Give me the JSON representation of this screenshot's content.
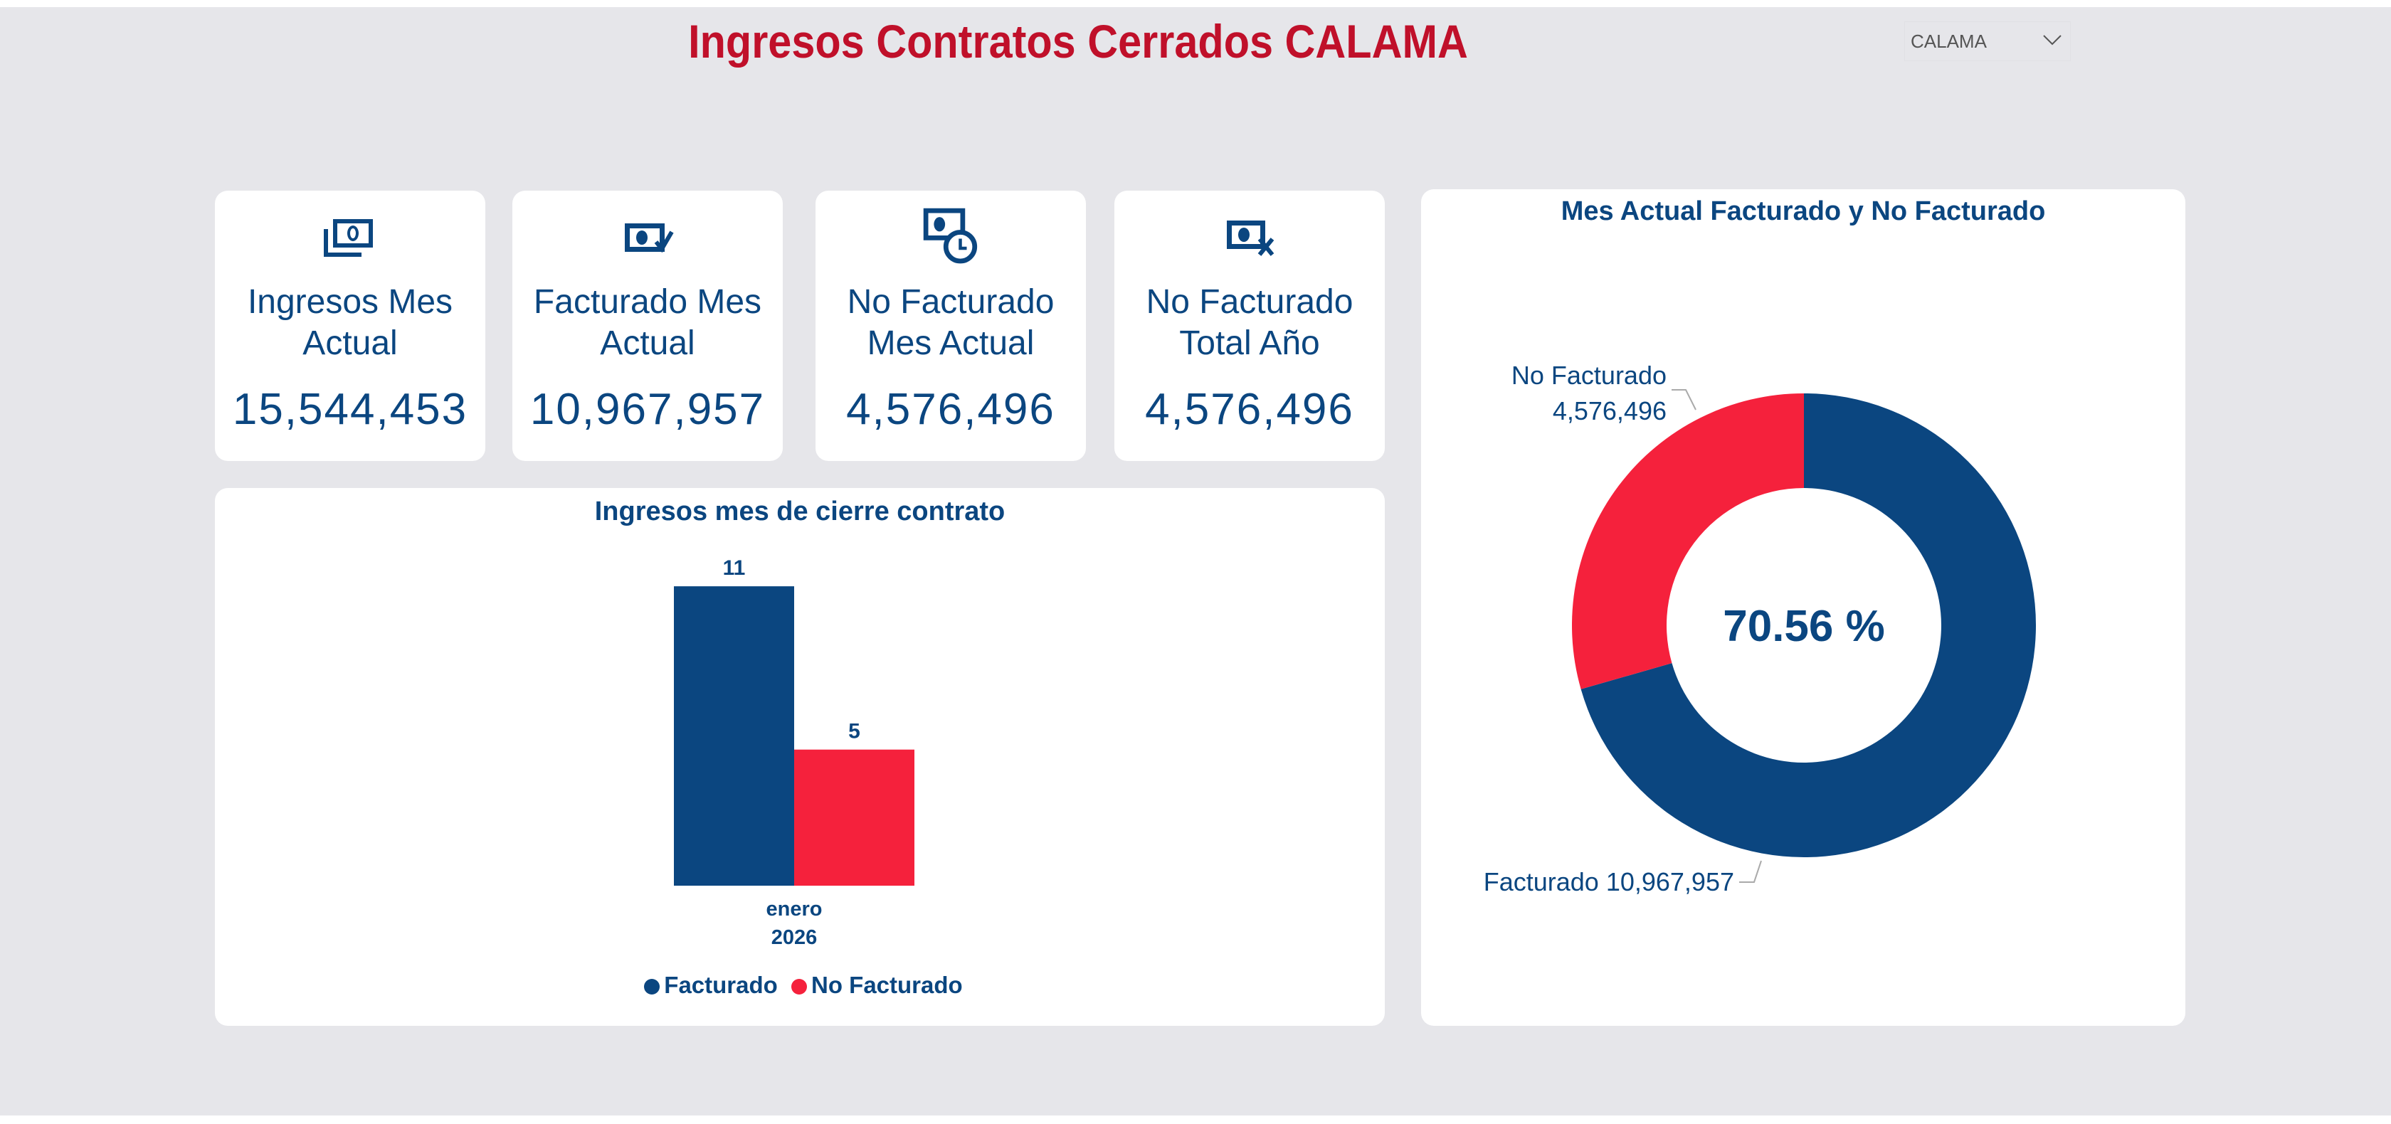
{
  "header": {
    "title": "Ingresos Contratos Cerrados  CALAMA"
  },
  "filter": {
    "selected": "CALAMA"
  },
  "kpis": [
    {
      "icon": "money-stack-icon",
      "label": "Ingresos Mes Actual",
      "value": "15,544,453"
    },
    {
      "icon": "money-check-icon",
      "label": "Facturado Mes Actual",
      "value": "10,967,957"
    },
    {
      "icon": "money-clock-icon",
      "label": "No Facturado Mes Actual",
      "value": "4,576,496"
    },
    {
      "icon": "money-x-icon",
      "label": "No Facturado Total Año",
      "value": "4,576,496"
    }
  ],
  "colors": {
    "facturado": "#0b4680",
    "no_facturado": "#f5213c",
    "title": "#c0102a"
  },
  "chart_data": [
    {
      "type": "bar",
      "title": "Ingresos mes de cierre contrato",
      "categories": [
        "enero 2026"
      ],
      "category_lines": [
        "enero",
        "2026"
      ],
      "series": [
        {
          "name": "Facturado",
          "values": [
            11
          ],
          "label": "11"
        },
        {
          "name": "No Facturado",
          "values": [
            5
          ],
          "label": "5"
        }
      ],
      "ylim": [
        0,
        11.5
      ],
      "legend": "bottom-center",
      "grid": false
    },
    {
      "type": "pie",
      "title": "Mes Actual Facturado y No Facturado",
      "center_label": "70.56 %",
      "slices": [
        {
          "name": "Facturado",
          "value": 10967957,
          "label": "Facturado 10,967,957"
        },
        {
          "name": "No Facturado",
          "value": 4576496,
          "label_line1": "No Facturado",
          "label_line2": "4,576,496"
        }
      ]
    }
  ]
}
